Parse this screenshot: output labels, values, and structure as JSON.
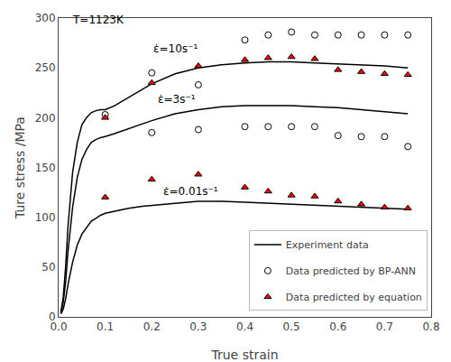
{
  "chart_data": {
    "type": "line",
    "xlabel": "True strain",
    "ylabel": "Ture stress /MPa",
    "xlim": [
      0,
      0.8
    ],
    "ylim": [
      0,
      300
    ],
    "xticks": [
      {
        "value": 0.0,
        "label": "0.0"
      },
      0.1,
      0.2,
      0.3,
      0.4,
      0.5,
      0.6,
      0.7,
      0.8
    ],
    "yticks": [
      0,
      50,
      100,
      150,
      200,
      250,
      300
    ],
    "grid": false,
    "legend": "lower right",
    "series": [
      {
        "name": "Experiment data",
        "type": "line",
        "color": "black",
        "x": [
          0.005,
          0.01,
          0.015,
          0.02,
          0.03,
          0.04,
          0.05,
          0.06,
          0.07,
          0.08,
          0.09,
          0.1,
          0.12,
          0.15,
          0.18,
          0.2,
          0.25,
          0.3,
          0.35,
          0.4,
          0.45,
          0.5,
          0.55,
          0.6,
          0.65,
          0.7,
          0.75
        ],
        "values": [
          5,
          20,
          50,
          90,
          145,
          175,
          193,
          200,
          205,
          207,
          208,
          208,
          212,
          220,
          228,
          234,
          244,
          250,
          253,
          255,
          256,
          256,
          255,
          254,
          253,
          252,
          250
        ]
      },
      {
        "name": "Experiment data",
        "type": "line",
        "color": "black",
        "x": [
          0.005,
          0.01,
          0.015,
          0.02,
          0.03,
          0.04,
          0.05,
          0.06,
          0.07,
          0.08,
          0.09,
          0.1,
          0.12,
          0.15,
          0.18,
          0.2,
          0.25,
          0.3,
          0.35,
          0.4,
          0.45,
          0.5,
          0.55,
          0.6,
          0.65,
          0.7,
          0.75
        ],
        "values": [
          4,
          15,
          35,
          65,
          110,
          140,
          158,
          168,
          175,
          178,
          180,
          181,
          184,
          189,
          194,
          197,
          204,
          208,
          211,
          212,
          212,
          212,
          211,
          210,
          208,
          206,
          204
        ]
      },
      {
        "name": "Experiment data",
        "type": "line",
        "color": "black",
        "x": [
          0.005,
          0.01,
          0.015,
          0.02,
          0.03,
          0.04,
          0.05,
          0.06,
          0.07,
          0.08,
          0.09,
          0.1,
          0.12,
          0.15,
          0.18,
          0.2,
          0.25,
          0.3,
          0.35,
          0.4,
          0.45,
          0.5,
          0.55,
          0.6,
          0.65,
          0.7,
          0.75
        ],
        "values": [
          3,
          8,
          18,
          32,
          55,
          72,
          83,
          90,
          96,
          99,
          102,
          104,
          106,
          109,
          111,
          112,
          114,
          116,
          116,
          115,
          114,
          113,
          112,
          111,
          110,
          109,
          108
        ]
      },
      {
        "name": "Data predicted by BP-ANN",
        "type": "scatter",
        "marker": "circle",
        "color": "white",
        "x": [
          0.2,
          0.3,
          0.4,
          0.45,
          0.5,
          0.55,
          0.6,
          0.65,
          0.7,
          0.75
        ],
        "values": [
          245,
          233,
          278,
          283,
          286,
          283,
          283,
          283,
          283,
          283
        ]
      },
      {
        "name": "Data predicted by BP-ANN",
        "type": "scatter",
        "marker": "circle",
        "color": "white",
        "x": [
          0.1,
          0.2,
          0.3,
          0.4,
          0.45,
          0.5,
          0.55,
          0.6,
          0.65,
          0.7,
          0.75
        ],
        "values": [
          203,
          185,
          188,
          191,
          191,
          191,
          191,
          182,
          181,
          181,
          171
        ]
      },
      {
        "name": "Data predicted by equation",
        "type": "scatter",
        "marker": "triangle-up",
        "color": "red",
        "x": [
          0.1,
          0.2,
          0.3,
          0.4,
          0.45,
          0.5,
          0.55,
          0.6,
          0.65,
          0.7,
          0.75
        ],
        "values": [
          200,
          235,
          252,
          258,
          260,
          261,
          259,
          248,
          246,
          244,
          243
        ]
      },
      {
        "name": "Data predicted by equation",
        "type": "scatter",
        "marker": "triangle-up",
        "color": "red",
        "x": [
          0.1,
          0.2,
          0.3,
          0.4,
          0.45,
          0.5,
          0.55,
          0.6,
          0.65,
          0.7,
          0.75
        ],
        "values": [
          120,
          138,
          143,
          130,
          126,
          122,
          121,
          116,
          113,
          110,
          109
        ]
      }
    ],
    "annotations": [
      {
        "text": "ε̇=10s⁻¹",
        "x": 0.2,
        "y": 261
      },
      {
        "text": "ε̇=3s⁻¹",
        "x": 0.21,
        "y": 210
      },
      {
        "text": "ε̇=0.01s⁻¹",
        "x": 0.22,
        "y": 118
      },
      {
        "text": "T=1123K",
        "x": 0.025,
        "y": 290
      }
    ]
  }
}
